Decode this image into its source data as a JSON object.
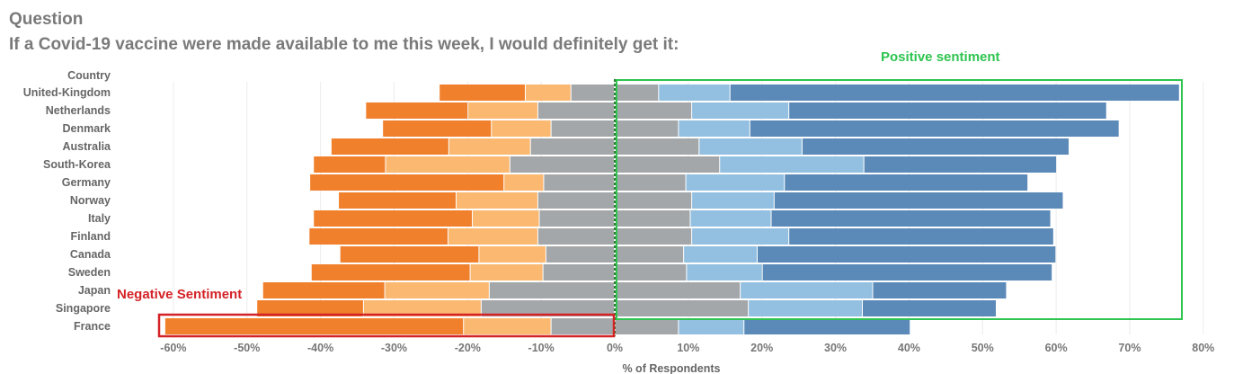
{
  "header": {
    "label": "Question",
    "question": "If a Covid-19 vaccine were made available to me this week, I would definitely get it:"
  },
  "annotations": {
    "positive": "Positive sentiment",
    "negative": "Negative Sentiment"
  },
  "colors": {
    "strongly_disagree": "#f0802c",
    "disagree": "#fbb870",
    "neutral": "#a4a7aa",
    "agree": "#93c0e1",
    "strongly_agree": "#5b8ab9",
    "positive_box": "#2ec44f",
    "negative_box": "#d42227",
    "zero_line": "#2e7d32"
  },
  "chart_data": {
    "type": "bar",
    "orientation": "horizontal diverging stacked",
    "title": "",
    "xlabel": "% of Respondents",
    "ylabel": "Country",
    "xlim": [
      -62,
      82
    ],
    "xticks": [
      "-60%",
      "-50%",
      "-40%",
      "-30%",
      "-20%",
      "-10%",
      "0%",
      "10%",
      "20%",
      "30%",
      "40%",
      "50%",
      "60%",
      "70%",
      "80%"
    ],
    "categories": [
      "United-Kingdom",
      "Netherlands",
      "Denmark",
      "Australia",
      "South-Korea",
      "Germany",
      "Norway",
      "Italy",
      "Finland",
      "Canada",
      "Sweden",
      "Japan",
      "Singapore",
      "France"
    ],
    "series": [
      {
        "key": "strongly_disagree",
        "side": "negative",
        "values": [
          11.7,
          13.9,
          14.8,
          16.0,
          9.8,
          26.4,
          16.0,
          21.6,
          18.9,
          18.9,
          21.6,
          16.6,
          14.5,
          40.6
        ]
      },
      {
        "key": "disagree",
        "side": "negative",
        "values": [
          6.2,
          9.5,
          8.1,
          11.1,
          16.9,
          5.4,
          11.1,
          9.1,
          12.2,
          9.1,
          9.9,
          14.2,
          16.0,
          11.9
        ]
      },
      {
        "key": "neutral",
        "side": "negative",
        "values": [
          5.9,
          10.4,
          8.6,
          11.4,
          14.2,
          9.6,
          10.4,
          10.2,
          10.4,
          9.3,
          9.7,
          17.0,
          18.1,
          8.6
        ]
      },
      {
        "key": "neutral",
        "side": "positive",
        "values": [
          5.9,
          10.4,
          8.6,
          11.4,
          14.2,
          9.6,
          10.4,
          10.2,
          10.4,
          9.3,
          9.7,
          17.0,
          18.1,
          8.6
        ]
      },
      {
        "key": "agree",
        "side": "positive",
        "values": [
          9.7,
          13.2,
          9.7,
          14.0,
          19.6,
          13.4,
          11.2,
          11.0,
          13.2,
          10.0,
          10.3,
          18.0,
          15.5,
          8.9
        ]
      },
      {
        "key": "strongly_agree",
        "side": "positive",
        "values": [
          61.1,
          43.2,
          50.2,
          36.3,
          26.2,
          33.1,
          39.3,
          38.0,
          36.0,
          40.6,
          39.4,
          18.2,
          18.2,
          22.6
        ]
      }
    ],
    "grid": true
  }
}
